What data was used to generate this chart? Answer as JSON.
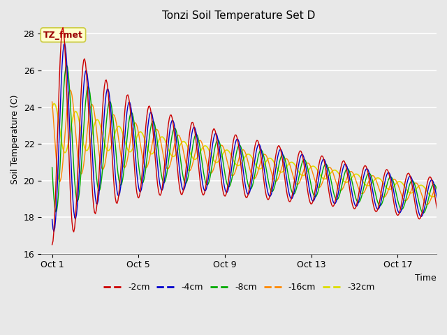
{
  "title": "Tonzi Soil Temperature Set D",
  "xlabel": "Time",
  "ylabel": "Soil Temperature (C)",
  "ylim": [
    16,
    28.5
  ],
  "xlim": [
    0.5,
    18.8
  ],
  "bg_color": "#e8e8e8",
  "grid_color": "#ffffff",
  "annotation_text": "TZ_fmet",
  "annotation_bg": "#ffffcc",
  "annotation_border": "#cccc44",
  "annotation_text_color": "#990000",
  "xtick_labels": [
    "Oct 1",
    "Oct 5",
    "Oct 9",
    "Oct 13",
    "Oct 17"
  ],
  "xtick_positions": [
    1,
    5,
    9,
    13,
    17
  ],
  "ytick_labels": [
    "16",
    "18",
    "20",
    "22",
    "24",
    "26",
    "28"
  ],
  "ytick_positions": [
    16,
    18,
    20,
    22,
    24,
    26,
    28
  ],
  "series": {
    "-2cm": {
      "color": "#cc0000",
      "lw": 1.0
    },
    "-4cm": {
      "color": "#0000cc",
      "lw": 1.0
    },
    "-8cm": {
      "color": "#00aa00",
      "lw": 1.0
    },
    "-16cm": {
      "color": "#ff8800",
      "lw": 1.0
    },
    "-32cm": {
      "color": "#dddd00",
      "lw": 1.2
    }
  }
}
